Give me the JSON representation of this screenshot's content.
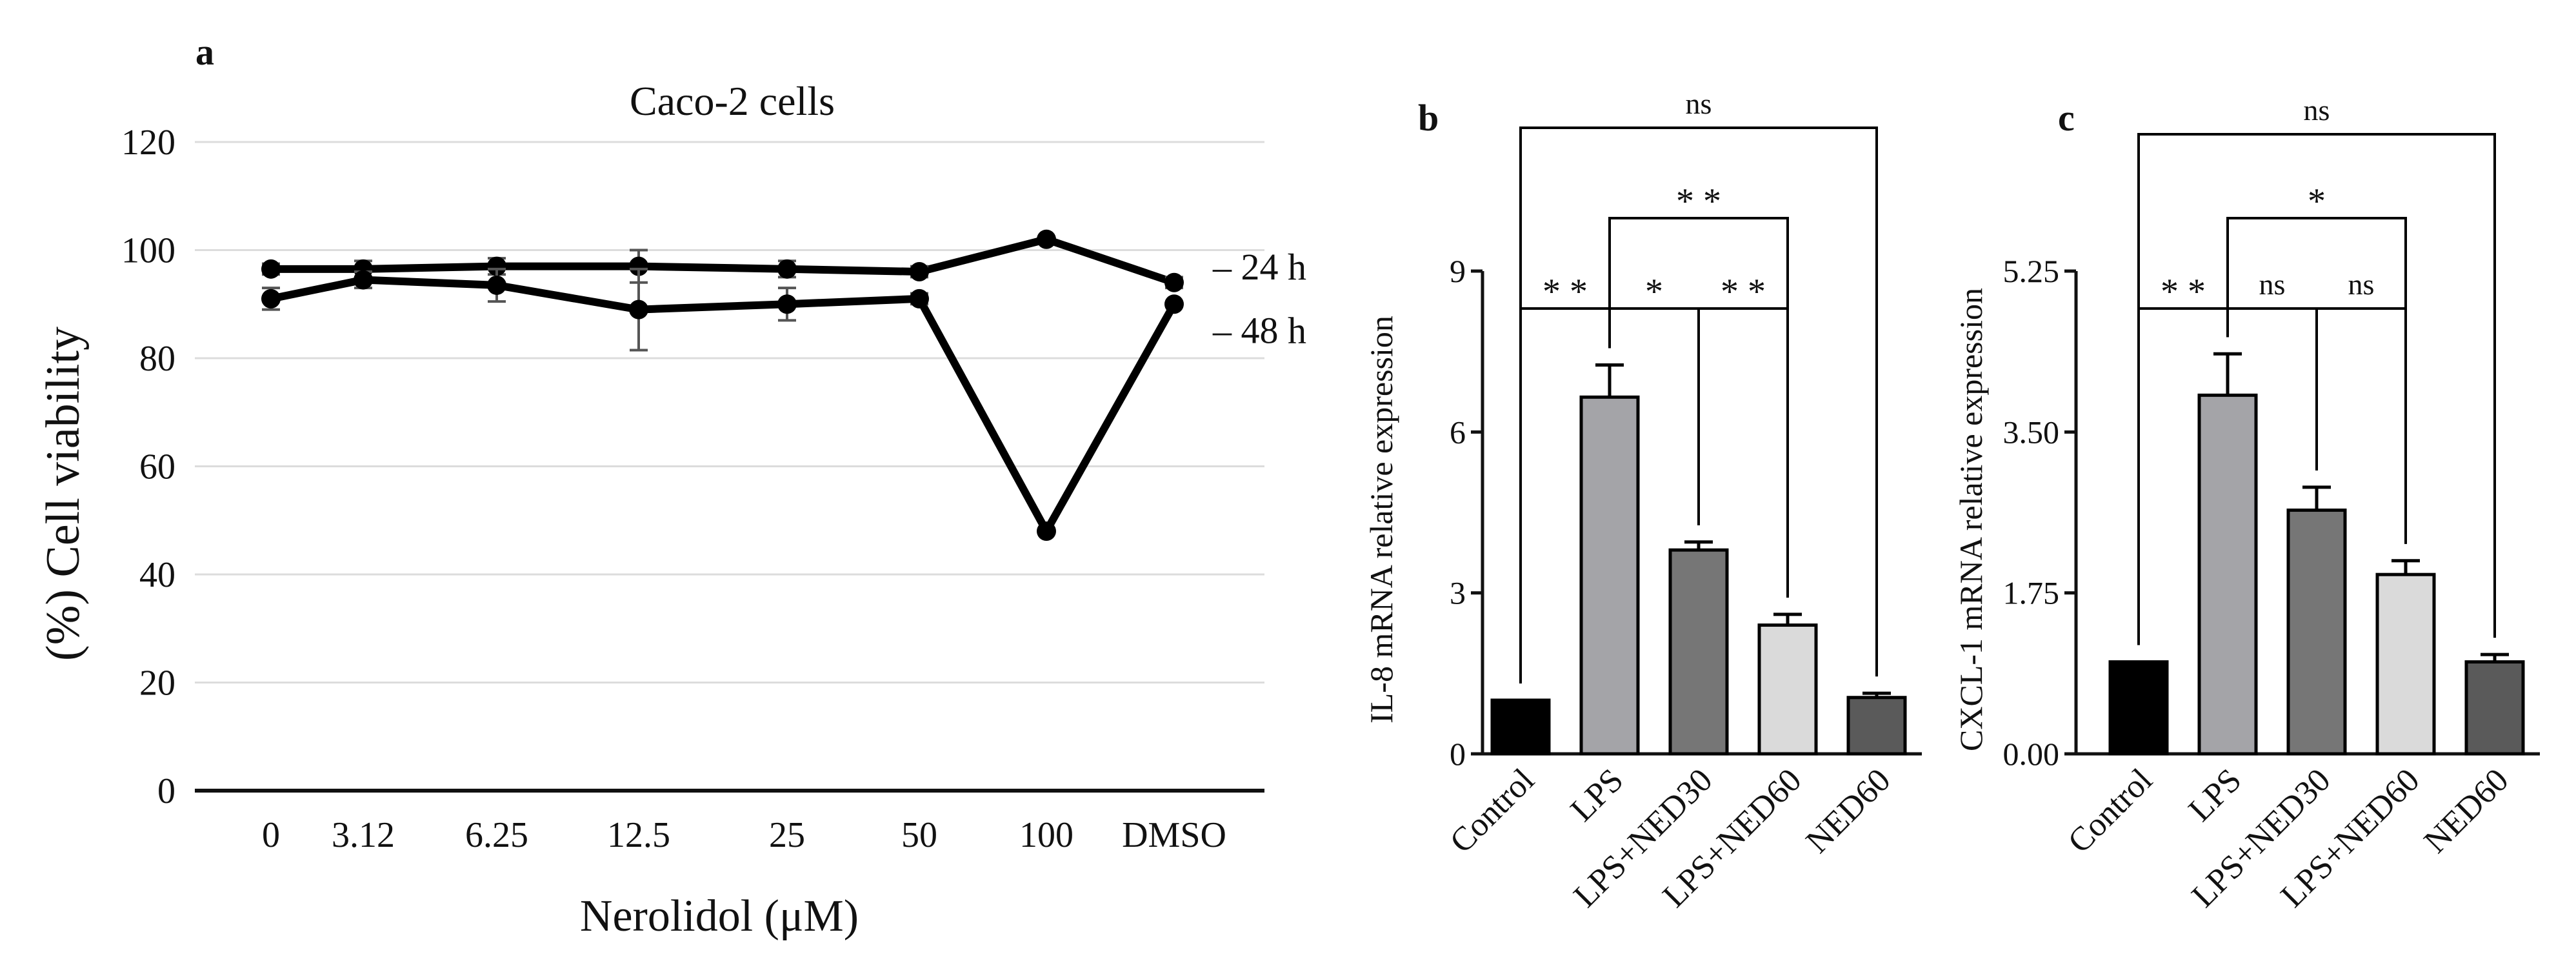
{
  "panels": {
    "a": {
      "letter": "a",
      "title": "Caco-2  cells",
      "xlabel": "Nerolidol (μM)",
      "ylabel": "(%) Cell viability",
      "categories": [
        "0",
        "3.12",
        "6.25",
        "12.5",
        "25",
        "50",
        "100",
        "DMSO"
      ],
      "yticks": [
        "0",
        "20",
        "40",
        "60",
        "80",
        "100",
        "120"
      ]
    },
    "b": {
      "letter": "b",
      "ylabel": "IL-8 mRNA relative expression",
      "categories": [
        "Control",
        "LPS",
        "LPS+NED30",
        "LPS+NED60",
        "NED60"
      ],
      "yticks": [
        "0",
        "3",
        "6",
        "9"
      ],
      "sig": [
        {
          "label": "ns"
        },
        {
          "label": "* *"
        },
        {
          "label": "* *"
        },
        {
          "label": "*"
        },
        {
          "label": "* *"
        }
      ]
    },
    "c": {
      "letter": "c",
      "ylabel": "CXCL-1 mRNA relative expression",
      "categories": [
        "Control",
        "LPS",
        "LPS+NED30",
        "LPS+NED60",
        "NED60"
      ],
      "yticks": [
        "0.00",
        "1.75",
        "3.50",
        "5.25"
      ],
      "sig": [
        {
          "label": "ns"
        },
        {
          "label": "*"
        },
        {
          "label": "* *"
        },
        {
          "label": "ns"
        },
        {
          "label": "ns"
        }
      ]
    }
  },
  "chart_data": [
    {
      "type": "line",
      "title": "Caco-2  cells",
      "xlabel": "Nerolidol (μM)",
      "ylabel": "(%) Cell viability",
      "categories": [
        "0",
        "3.12",
        "6.25",
        "12.5",
        "25",
        "50",
        "100",
        "DMSO"
      ],
      "ylim": [
        0,
        120
      ],
      "grid": true,
      "series": [
        {
          "name": "24 h",
          "values": [
            96.5,
            96.5,
            97,
            97,
            96.5,
            96,
            102,
            94
          ],
          "errors": [
            1,
            1.5,
            1.5,
            3,
            1.5,
            1,
            0.5,
            1
          ]
        },
        {
          "name": "48 h",
          "values": [
            91,
            94.5,
            93.5,
            89,
            90,
            91,
            48,
            90
          ],
          "errors": [
            2,
            1.5,
            3,
            7.5,
            3,
            1,
            0.5,
            0.5
          ]
        }
      ]
    },
    {
      "type": "bar",
      "ylabel": "IL-8 mRNA relative expression",
      "categories": [
        "Control",
        "LPS",
        "LPS+NED30",
        "LPS+NED60",
        "NED60"
      ],
      "values": [
        1.0,
        6.65,
        3.8,
        2.4,
        1.05
      ],
      "errors": [
        0,
        0.6,
        0.15,
        0.2,
        0.08
      ],
      "colors": [
        "#000000",
        "#a4a4a8",
        "#767676",
        "#dadada",
        "#5a5a5a"
      ],
      "ylim": [
        0,
        9
      ]
    },
    {
      "type": "bar",
      "ylabel": "CXCL-1 mRNA relative expression",
      "categories": [
        "Control",
        "LPS",
        "LPS+NED30",
        "LPS+NED60",
        "NED60"
      ],
      "values": [
        1.0,
        3.9,
        2.65,
        1.95,
        1.0
      ],
      "errors": [
        0,
        0.45,
        0.25,
        0.15,
        0.08
      ],
      "colors": [
        "#000000",
        "#a4a4a8",
        "#767676",
        "#dadada",
        "#5a5a5a"
      ],
      "ylim": [
        0,
        5.25
      ]
    }
  ]
}
